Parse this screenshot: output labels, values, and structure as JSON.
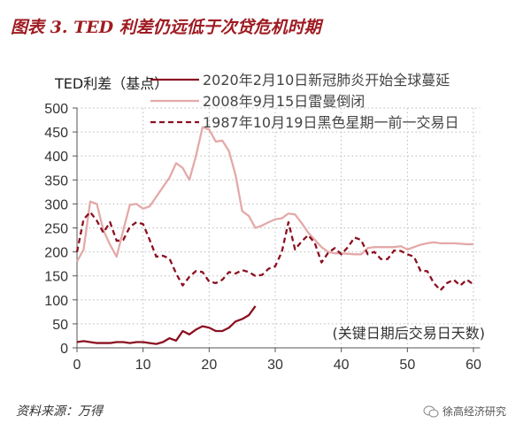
{
  "title": "图表 3. TED 利差仍远低于次贷危机时期",
  "source": "资料来源：万得",
  "watermark": "徐高经济研究",
  "chart_data": {
    "type": "line",
    "ylabel": "TED利差（基点）",
    "annotation": "(关键日期后交易日天数)",
    "xlim": [
      0,
      61
    ],
    "ylim": [
      0,
      500
    ],
    "xticks": [
      0,
      10,
      20,
      30,
      40,
      50,
      60
    ],
    "yticks": [
      0,
      50,
      100,
      150,
      200,
      250,
      300,
      350,
      400,
      450,
      500
    ],
    "grid": true,
    "legend_placement": "top",
    "series": [
      {
        "name": "2020年2月10日新冠肺炎开始全球蔓延",
        "color": "#8b1020",
        "style": "solid",
        "values": [
          12,
          14,
          12,
          10,
          10,
          10,
          12,
          12,
          10,
          12,
          12,
          10,
          8,
          12,
          20,
          15,
          35,
          28,
          38,
          45,
          42,
          35,
          35,
          42,
          55,
          60,
          68,
          87
        ]
      },
      {
        "name": "2008年9月15日雷曼倒闭",
        "color": "#e4a9a9",
        "style": "solid",
        "values": [
          180,
          205,
          305,
          300,
          245,
          215,
          190,
          245,
          298,
          300,
          290,
          295,
          315,
          335,
          355,
          385,
          375,
          350,
          400,
          460,
          455,
          430,
          432,
          410,
          360,
          285,
          275,
          250,
          255,
          262,
          268,
          270,
          280,
          278,
          260,
          240,
          225,
          210,
          200,
          197,
          197,
          196,
          195,
          195,
          208,
          210,
          210,
          210,
          210,
          212,
          205,
          210,
          215,
          218,
          220,
          218,
          218,
          218,
          217,
          216,
          216
        ]
      },
      {
        "name": "1987年10月19日黑色星期一前一交易日",
        "color": "#8b1020",
        "style": "dashed",
        "values": [
          200,
          268,
          283,
          265,
          240,
          262,
          223,
          225,
          252,
          262,
          258,
          225,
          190,
          192,
          186,
          155,
          130,
          148,
          160,
          158,
          138,
          135,
          142,
          158,
          155,
          162,
          158,
          150,
          152,
          165,
          170,
          200,
          262,
          205,
          222,
          235,
          218,
          178,
          198,
          208,
          195,
          210,
          230,
          225,
          195,
          200,
          185,
          185,
          203,
          202,
          195,
          190,
          160,
          160,
          135,
          120,
          135,
          142,
          130,
          142,
          132
        ]
      }
    ]
  }
}
